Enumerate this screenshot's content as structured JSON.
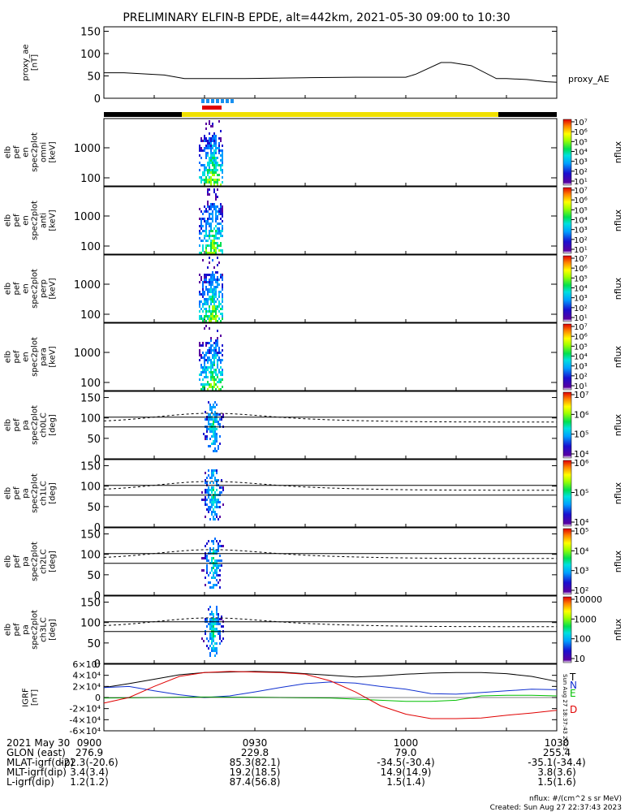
{
  "title": "PRELIMINARY ELFIN-B EPDE, alt=442km, 2021-05-30 09:00 to 10:30",
  "created": "Created: Sun Aug 27 22:37:43 2023",
  "created_vertical": "Sun Aug 27 18:37:43 2023",
  "units_note": "nflux: #/(cm^2 s sr MeV)",
  "colors": {
    "spectra": "#00e050",
    "black": "#000000",
    "red": "#e00000",
    "blue": "#1030d0",
    "green": "#00c000",
    "yellow": "#f0e000",
    "lightblue": "#1890f0"
  },
  "chart_data": {
    "type": "multi-panel time series / spectrograms",
    "x_range": [
      "09:00",
      "10:30"
    ],
    "panels": [
      {
        "id": "proxy_ae",
        "type": "line",
        "ylabel": [
          "proxy_ae",
          "[nT]"
        ],
        "yticks": [
          "0",
          "50",
          "100",
          "150"
        ],
        "ylim": [
          0,
          160
        ],
        "legend": "proxy_AE",
        "x_minutes": [
          0,
          4,
          12,
          16,
          28,
          40,
          50,
          56,
          60,
          62,
          67,
          69,
          73,
          78,
          80,
          84,
          88,
          90
        ],
        "values": [
          57,
          57,
          52,
          44,
          44,
          46,
          47,
          47,
          47,
          54,
          80,
          80,
          73,
          44,
          44,
          42,
          37,
          36
        ]
      },
      {
        "id": "en_omni",
        "type": "heatmap",
        "ylabel": [
          "elb",
          "pef",
          "en",
          "spec2plot",
          "omni",
          "[keV]"
        ],
        "yticks": [
          "100",
          "1000"
        ],
        "colorbar": {
          "label": "nflux",
          "ticks": [
            "10¹",
            "10²",
            "10³",
            "10⁴",
            "10⁵",
            "10⁶",
            "10⁷"
          ]
        }
      },
      {
        "id": "en_anti",
        "type": "heatmap",
        "ylabel": [
          "elb",
          "pef",
          "en",
          "spec2plot",
          "anti",
          "[keV]"
        ],
        "yticks": [
          "100",
          "1000"
        ],
        "colorbar": {
          "label": "nflux",
          "ticks": [
            "10¹",
            "10²",
            "10³",
            "10⁴",
            "10⁵",
            "10⁶",
            "10⁷"
          ]
        }
      },
      {
        "id": "en_perp",
        "type": "heatmap",
        "ylabel": [
          "elb",
          "pef",
          "en",
          "spec2plot",
          "perp",
          "[keV]"
        ],
        "yticks": [
          "100",
          "1000"
        ],
        "colorbar": {
          "label": "nflux",
          "ticks": [
            "10¹",
            "10²",
            "10³",
            "10⁴",
            "10⁵",
            "10⁶",
            "10⁷"
          ]
        }
      },
      {
        "id": "en_para",
        "type": "heatmap",
        "ylabel": [
          "elb",
          "pef",
          "en",
          "spec2plot",
          "para",
          "[keV]"
        ],
        "yticks": [
          "100",
          "1000"
        ],
        "colorbar": {
          "label": "nflux",
          "ticks": [
            "10¹",
            "10²",
            "10³",
            "10⁴",
            "10⁵",
            "10⁶",
            "10⁷"
          ]
        }
      },
      {
        "id": "pa_ch0",
        "type": "heatmap",
        "ylabel": [
          "elb",
          "pef",
          "pa",
          "spec2plot",
          "ch0LC",
          "[deg]"
        ],
        "yticks": [
          "0",
          "50",
          "100",
          "150"
        ],
        "colorbar": {
          "label": "nflux",
          "ticks": [
            "10⁴",
            "10⁵",
            "10⁶",
            "10⁷"
          ]
        }
      },
      {
        "id": "pa_ch1",
        "type": "heatmap",
        "ylabel": [
          "elb",
          "pef",
          "pa",
          "spec2plot",
          "ch1LC",
          "[deg]"
        ],
        "yticks": [
          "0",
          "50",
          "100",
          "150"
        ],
        "colorbar": {
          "label": "nflux",
          "ticks": [
            "10⁴",
            "10⁵",
            "10⁶"
          ]
        }
      },
      {
        "id": "pa_ch2",
        "type": "heatmap",
        "ylabel": [
          "elb",
          "pef",
          "pa",
          "spec2plot",
          "ch2LC",
          "[deg]"
        ],
        "yticks": [
          "0",
          "50",
          "100",
          "150"
        ],
        "colorbar": {
          "label": "nflux",
          "ticks": [
            "10²",
            "10³",
            "10⁴",
            "10⁵"
          ]
        }
      },
      {
        "id": "pa_ch3",
        "type": "heatmap",
        "ylabel": [
          "elb",
          "pef",
          "pa",
          "spec2plot",
          "ch3LC",
          "[deg]"
        ],
        "yticks": [
          "0",
          "50",
          "100",
          "150"
        ],
        "colorbar": {
          "label": "nflux",
          "ticks": [
            "10",
            "100",
            "1000",
            "10000"
          ]
        }
      },
      {
        "id": "igrf",
        "type": "line",
        "ylabel": [
          "IGRF",
          "[nT]"
        ],
        "yticks": [
          "-6×10⁴",
          "-4×10⁴",
          "-2×10⁴",
          "0",
          "2×10⁴",
          "4×10⁴",
          "6×10⁴"
        ],
        "ylim": [
          -60000,
          60000
        ],
        "series": [
          {
            "name": "T",
            "x_minutes": [
              0,
              5,
              10,
              15,
              20,
              25,
              30,
              35,
              40,
              45,
              50,
              55,
              60,
              65,
              70,
              75,
              80,
              85,
              90
            ],
            "values": [
              18000,
              25000,
              33000,
              41000,
              45000,
              46000,
              47000,
              46000,
              43000,
              40000,
              37000,
              39000,
              42000,
              44000,
              45000,
              45000,
              43000,
              38000,
              29000
            ]
          },
          {
            "name": "N",
            "x_minutes": [
              0,
              5,
              10,
              15,
              20,
              25,
              30,
              35,
              40,
              45,
              50,
              55,
              60,
              65,
              70,
              75,
              80,
              85,
              90
            ],
            "values": [
              18000,
              20000,
              12000,
              5000,
              0,
              3000,
              10000,
              18000,
              25000,
              28000,
              26000,
              20000,
              15000,
              7000,
              6000,
              9000,
              12000,
              15000,
              14000
            ]
          },
          {
            "name": "E",
            "x_minutes": [
              0,
              5,
              10,
              15,
              20,
              25,
              30,
              35,
              40,
              45,
              50,
              55,
              60,
              65,
              70,
              75,
              80,
              85,
              90
            ],
            "values": [
              -1000,
              -500,
              0,
              500,
              1000,
              800,
              500,
              0,
              -500,
              -1000,
              -3000,
              -5000,
              -7000,
              -7000,
              -5000,
              3000,
              4000,
              4000,
              3000
            ]
          },
          {
            "name": "D",
            "x_minutes": [
              0,
              5,
              10,
              15,
              20,
              25,
              30,
              35,
              40,
              45,
              50,
              55,
              60,
              65,
              70,
              75,
              80,
              85,
              90
            ],
            "values": [
              -10000,
              0,
              20000,
              38000,
              45000,
              47000,
              46000,
              45000,
              42000,
              30000,
              10000,
              -15000,
              -30000,
              -38000,
              -38000,
              -37000,
              -32000,
              -28000,
              -23000
            ]
          }
        ]
      }
    ],
    "time_axis": {
      "rows": [
        {
          "label": "2021 May 30",
          "vals": [
            "0900",
            "0930",
            "1000",
            "1030"
          ]
        },
        {
          "label": "GLON (east)",
          "vals": [
            "276.9",
            "229.8",
            "79.0",
            "255.4"
          ]
        },
        {
          "label": "MLAT-igrf(dip)",
          "vals": [
            "-22.3(-20.6)",
            "85.3(82.1)",
            "-34.5(-30.4)",
            "-35.1(-34.4)"
          ]
        },
        {
          "label": "MLT-igrf(dip)",
          "vals": [
            "3.4(3.4)",
            "19.2(18.5)",
            "14.9(14.9)",
            "3.8(3.6)"
          ]
        },
        {
          "label": "L-igrf(dip)",
          "vals": [
            "1.2(1.2)",
            "87.4(56.8)",
            "1.5(1.4)",
            "1.5(1.6)"
          ]
        }
      ]
    }
  }
}
